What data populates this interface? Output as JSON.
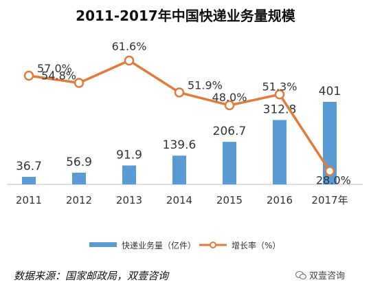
{
  "chart_data": {
    "type": "bar",
    "title": "2011-2017年中国快递业务量规模",
    "categories": [
      "2011",
      "2012",
      "2013",
      "2014",
      "2015",
      "2016",
      "2017年"
    ],
    "series": [
      {
        "name": "快递业务量（亿件）",
        "type": "bar",
        "values": [
          36.7,
          56.9,
          91.9,
          139.6,
          206.7,
          312.8,
          401
        ],
        "labels": [
          "36.7",
          "56.9",
          "91.9",
          "139.6",
          "206.7",
          "312.8",
          "401"
        ],
        "color": "#5b9bd5"
      },
      {
        "name": "增长率（%）",
        "type": "line",
        "values": [
          57.0,
          54.8,
          61.6,
          51.9,
          48.0,
          51.3,
          28.0
        ],
        "labels": [
          "57.0%",
          "54.8%",
          "61.6%",
          "51.9%",
          "48.0%",
          "51.3%",
          "28.0%"
        ],
        "color": "#e07b39"
      }
    ],
    "legend_position": "bottom",
    "grid": false
  },
  "footer": {
    "source": "数据来源：国家邮政局，双壹咨询",
    "watermark": "双壹咨询"
  }
}
